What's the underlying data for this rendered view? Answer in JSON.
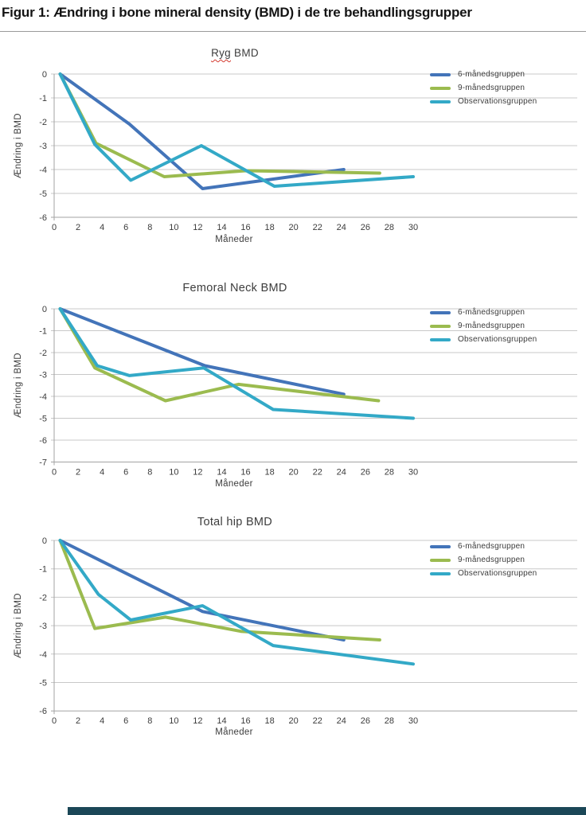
{
  "page": {
    "title": "Figur 1: Ændring i bone mineral density (BMD) i de tre behandlingsgrupper"
  },
  "colors": {
    "series_6m": "#4374b9",
    "series_9m": "#9bbb4f",
    "series_obs": "#33a9c7",
    "gridline": "#c8c8c8",
    "axis": "#a3a3a3",
    "bottom_bar": "#1b4757",
    "spellcheck_underline": "#d43a2f"
  },
  "chart_data": [
    {
      "type": "line",
      "title": "Ryg BMD",
      "title_parts": {
        "underlined": "Ryg",
        "rest": " BMD"
      },
      "xlabel": "Måneder",
      "ylabel": "Ændring i BMD",
      "xlim": [
        0,
        30
      ],
      "ylim": [
        -6,
        0
      ],
      "x_ticks": [
        0,
        2,
        4,
        6,
        8,
        10,
        12,
        14,
        16,
        18,
        20,
        22,
        24,
        26,
        28,
        30
      ],
      "y_ticks": [
        0,
        -1,
        -2,
        -3,
        -4,
        -5,
        -6
      ],
      "grid": true,
      "legend_position": "right",
      "series": [
        {
          "name": "6-månedsgruppen",
          "color": "#4374b9",
          "points": [
            [
              0.5,
              0
            ],
            [
              6.3,
              -2.1
            ],
            [
              12.4,
              -4.8
            ],
            [
              24.2,
              -4.0
            ]
          ]
        },
        {
          "name": "9-månedsgruppen",
          "color": "#9bbb4f",
          "points": [
            [
              0.5,
              0
            ],
            [
              3.5,
              -2.9
            ],
            [
              9.2,
              -4.3
            ],
            [
              16,
              -4.05
            ],
            [
              27.2,
              -4.15
            ]
          ]
        },
        {
          "name": "Observationsgruppen",
          "color": "#33a9c7",
          "points": [
            [
              0.5,
              0
            ],
            [
              3.4,
              -2.95
            ],
            [
              6.4,
              -4.45
            ],
            [
              12.3,
              -3.0
            ],
            [
              18.4,
              -4.7
            ],
            [
              30,
              -4.3
            ]
          ]
        }
      ]
    },
    {
      "type": "line",
      "title": "Femoral Neck BMD",
      "xlabel": "Måneder",
      "ylabel": "Ændring i BMD",
      "xlim": [
        0,
        30
      ],
      "ylim": [
        -7,
        0
      ],
      "x_ticks": [
        0,
        2,
        4,
        6,
        8,
        10,
        12,
        14,
        16,
        18,
        20,
        22,
        24,
        26,
        28,
        30
      ],
      "y_ticks": [
        0,
        -1,
        -2,
        -3,
        -4,
        -5,
        -6,
        -7
      ],
      "grid": true,
      "legend_position": "right",
      "series": [
        {
          "name": "6-månedsgruppen",
          "color": "#4374b9",
          "points": [
            [
              0.5,
              0
            ],
            [
              12.6,
              -2.6
            ],
            [
              24.2,
              -3.9
            ]
          ]
        },
        {
          "name": "9-månedsgruppen",
          "color": "#9bbb4f",
          "points": [
            [
              0.5,
              0
            ],
            [
              3.4,
              -2.7
            ],
            [
              9.3,
              -4.2
            ],
            [
              15.4,
              -3.45
            ],
            [
              27.1,
              -4.2
            ]
          ]
        },
        {
          "name": "Observationsgruppen",
          "color": "#33a9c7",
          "points": [
            [
              0.5,
              0
            ],
            [
              3.6,
              -2.6
            ],
            [
              6.3,
              -3.05
            ],
            [
              12.5,
              -2.7
            ],
            [
              18.3,
              -4.6
            ],
            [
              30,
              -5.0
            ]
          ]
        }
      ]
    },
    {
      "type": "line",
      "title": "Total hip BMD",
      "xlabel": "Måneder",
      "ylabel": "Ændring i BMD",
      "xlim": [
        0,
        30
      ],
      "ylim": [
        -6,
        0
      ],
      "x_ticks": [
        0,
        2,
        4,
        6,
        8,
        10,
        12,
        14,
        16,
        18,
        20,
        22,
        24,
        26,
        28,
        30
      ],
      "y_ticks": [
        0,
        -1,
        -2,
        -3,
        -4,
        -5,
        -6
      ],
      "grid": true,
      "legend_position": "right",
      "series": [
        {
          "name": "6-månedsgruppen",
          "color": "#4374b9",
          "points": [
            [
              0.5,
              0
            ],
            [
              12.4,
              -2.5
            ],
            [
              24.2,
              -3.5
            ]
          ]
        },
        {
          "name": "9-månedsgruppen",
          "color": "#9bbb4f",
          "points": [
            [
              0.5,
              0
            ],
            [
              3.4,
              -3.1
            ],
            [
              9.3,
              -2.7
            ],
            [
              15.6,
              -3.2
            ],
            [
              27.2,
              -3.5
            ]
          ]
        },
        {
          "name": "Observationsgruppen",
          "color": "#33a9c7",
          "points": [
            [
              0.5,
              0
            ],
            [
              3.7,
              -1.9
            ],
            [
              6.4,
              -2.8
            ],
            [
              12.4,
              -2.3
            ],
            [
              18.3,
              -3.7
            ],
            [
              30,
              -4.35
            ]
          ]
        }
      ]
    }
  ]
}
